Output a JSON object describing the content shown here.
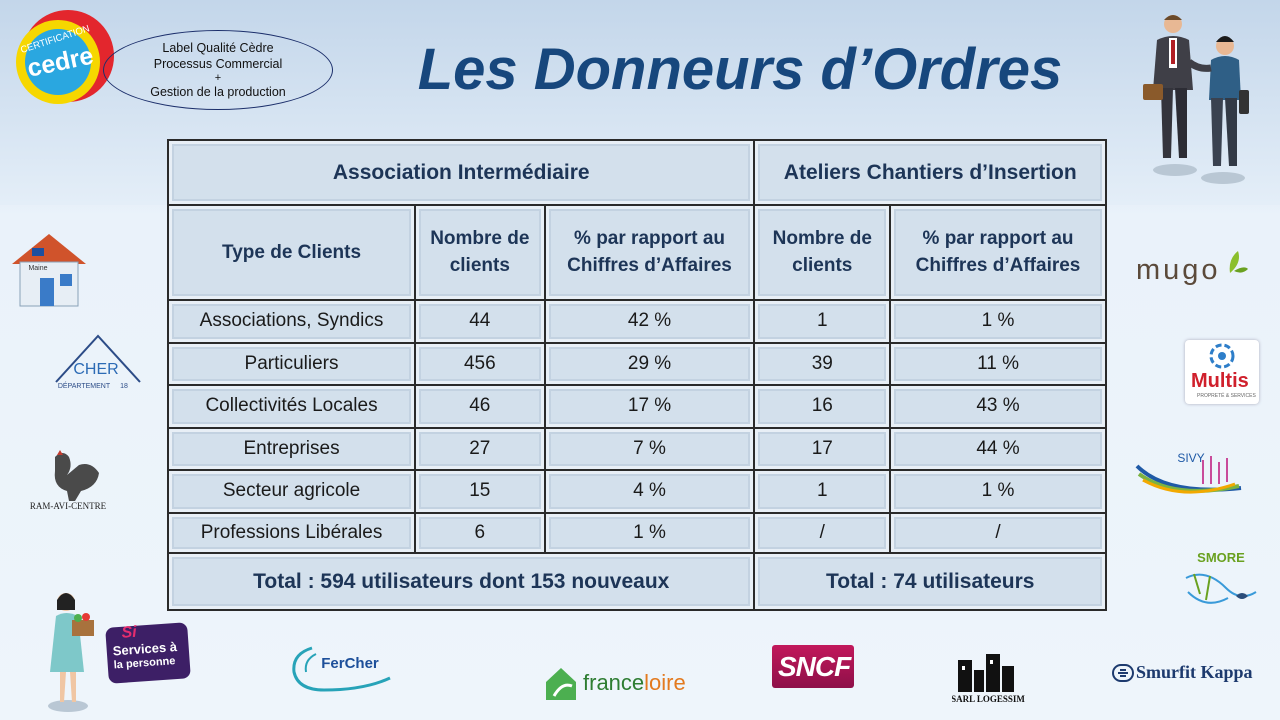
{
  "title": "Les Donneurs d’Ordres",
  "certification": {
    "badge_top": "CERTIFICATION",
    "badge_main": "cedre",
    "oval_lines": [
      "Label Qualité Cèdre",
      "Processus Commercial",
      "+",
      "Gestion de la production"
    ]
  },
  "table": {
    "groups": [
      "Association Intermédiaire",
      "Ateliers Chantiers d’Insertion"
    ],
    "headers": {
      "type": "Type de Clients",
      "ai_count": "Nombre de clients",
      "ai_pct": "% par rapport au Chiffres d’Affaires",
      "aci_count": "Nombre de clients",
      "aci_pct": "% par rapport au Chiffres d’Affaires"
    },
    "rows": [
      {
        "type": "Associations, Syndics",
        "ai_count": "44",
        "ai_pct": "42 %",
        "aci_count": "1",
        "aci_pct": "1 %"
      },
      {
        "type": "Particuliers",
        "ai_count": "456",
        "ai_pct": "29 %",
        "aci_count": "39",
        "aci_pct": "11 %"
      },
      {
        "type": "Collectivités Locales",
        "ai_count": "46",
        "ai_pct": "17 %",
        "aci_count": "16",
        "aci_pct": "43 %"
      },
      {
        "type": "Entreprises",
        "ai_count": "27",
        "ai_pct": "7 %",
        "aci_count": "17",
        "aci_pct": "44 %"
      },
      {
        "type": "Secteur agricole",
        "ai_count": "15",
        "ai_pct": "4 %",
        "aci_count": "1",
        "aci_pct": "1 %"
      },
      {
        "type": "Professions Libérales",
        "ai_count": "6",
        "ai_pct": "1 %",
        "aci_count": "/",
        "aci_pct": "/"
      }
    ],
    "totals": {
      "ai": "Total : 594 utilisateurs dont 153 nouveaux",
      "aci": "Total : 74 utilisateurs"
    }
  },
  "logos": {
    "maine_house": "Maine",
    "cher_main": "CHER",
    "cher_sub": "DÉPARTEMENT",
    "cher_num": "18",
    "ram": "RAM-AVI-CENTRE",
    "mugo": "mugo",
    "multis": "Multis",
    "multis_sub": "PROPRETÉ & SERVICES",
    "sivy": "SIVY",
    "smore": "SMORE",
    "services_si": "Si",
    "services_line1": "Services à",
    "services_line2": "la personne",
    "fercher": "FerCher",
    "franceloire_a": "france",
    "franceloire_b": "loire",
    "sncf": "SNCF",
    "logessim": "SARL LOGESSIM",
    "smurfit": "Smurfit Kappa"
  },
  "colors": {
    "title": "#17477d",
    "table_cell": "#d3e0ec",
    "header_text": "#1d3557"
  }
}
